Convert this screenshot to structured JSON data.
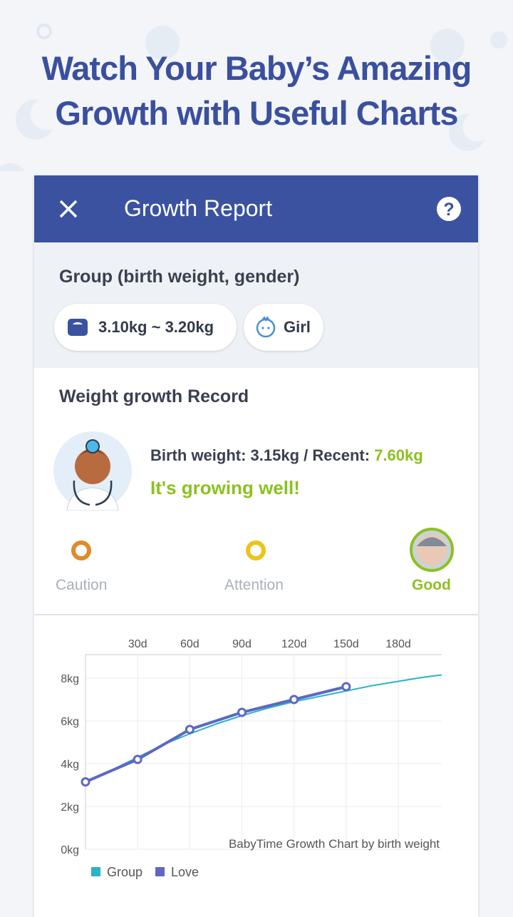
{
  "headline": [
    "Watch Your Baby’s Amazing",
    "Growth with Useful Charts"
  ],
  "app_bar": {
    "title": "Growth Report"
  },
  "group": {
    "label": "Group (birth weight, gender)",
    "chips": [
      "3.10kg ~ 3.20kg",
      "Girl"
    ]
  },
  "record": {
    "title": "Weight growth Record",
    "summary": "Birth weight: 3.15kg / Recent:",
    "recent": "7.60kg",
    "status": "It's growing well!"
  },
  "scale": {
    "labels": [
      "Caution",
      "Attention",
      "Good"
    ]
  },
  "chart_data": {
    "type": "line",
    "annotation": "BabyTime Growth Chart by birth weight",
    "xlim": [
      0,
      205
    ],
    "ylim": [
      0,
      9.1
    ],
    "xticks": [
      {
        "value": 30,
        "label": "30d"
      },
      {
        "value": 60,
        "label": "60d"
      },
      {
        "value": 90,
        "label": "90d"
      },
      {
        "value": 120,
        "label": "120d"
      },
      {
        "value": 150,
        "label": "150d"
      },
      {
        "value": 180,
        "label": "180d"
      }
    ],
    "yticks": [
      {
        "value": 0,
        "label": "0kg"
      },
      {
        "value": 2,
        "label": "2kg"
      },
      {
        "value": 4,
        "label": "4kg"
      },
      {
        "value": 6,
        "label": "6kg"
      },
      {
        "value": 8,
        "label": "8kg"
      }
    ],
    "grid": true,
    "series": [
      {
        "name": "Group",
        "color": "#2bb3c8",
        "markers": false,
        "x": [
          0,
          15,
          30,
          45,
          60,
          75,
          90,
          105,
          120,
          135,
          150,
          165,
          180,
          195,
          205
        ],
        "values": [
          3.1,
          3.7,
          4.3,
          4.9,
          5.4,
          5.85,
          6.25,
          6.6,
          6.9,
          7.15,
          7.4,
          7.65,
          7.85,
          8.05,
          8.15
        ]
      },
      {
        "name": "Love",
        "color": "#5c68c4",
        "markers": true,
        "x": [
          0,
          30,
          60,
          90,
          120,
          150
        ],
        "values": [
          3.15,
          4.2,
          5.6,
          6.4,
          7.0,
          7.6
        ]
      }
    ]
  }
}
